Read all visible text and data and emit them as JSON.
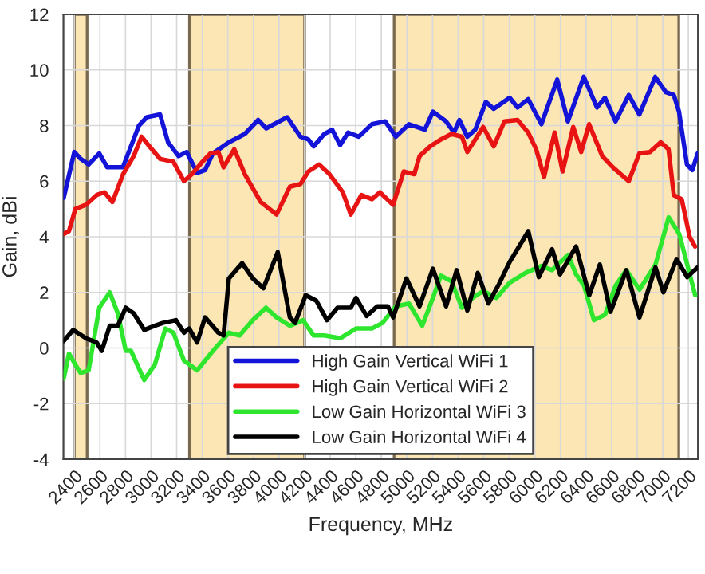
{
  "chart_data": {
    "type": "line",
    "xlabel": "Frequency, MHz",
    "ylabel": "Gain, dBi",
    "xlim": [
      2315,
      7275
    ],
    "ylim": [
      -4,
      12
    ],
    "xticks": [
      2400,
      2600,
      2800,
      3000,
      3200,
      3400,
      3600,
      3800,
      4000,
      4200,
      4400,
      4600,
      4800,
      5000,
      5200,
      5400,
      5600,
      5800,
      6000,
      6200,
      6400,
      6600,
      6800,
      7000,
      7200
    ],
    "yticks": [
      -4,
      -2,
      0,
      2,
      4,
      6,
      8,
      10,
      12
    ],
    "grid": true,
    "legend": "bottom",
    "bands": [
      {
        "axis": "x",
        "from": 2400,
        "to": 2500,
        "color": "#fce6b4"
      },
      {
        "axis": "x",
        "from": 3300,
        "to": 4200,
        "color": "#fce6b4"
      },
      {
        "axis": "x",
        "from": 4900,
        "to": 7125,
        "color": "#fce6b4"
      }
    ],
    "series": [
      {
        "name": "High Gain Vertical WiFi 1",
        "color": "#1414d8",
        "x": [
          2317,
          2400,
          2450,
          2512,
          2595,
          2657,
          2780,
          2905,
          2967,
          3070,
          3133,
          3215,
          3278,
          3360,
          3422,
          3484,
          3608,
          3733,
          3837,
          3900,
          4064,
          4168,
          4230,
          4271,
          4354,
          4416,
          4478,
          4540,
          4623,
          4727,
          4830,
          4913,
          5016,
          5140,
          5203,
          5306,
          5368,
          5410,
          5472,
          5534,
          5617,
          5679,
          5803,
          5865,
          5948,
          6051,
          6175,
          6258,
          6382,
          6486,
          6548,
          6631,
          6734,
          6817,
          6941,
          7024,
          7086,
          7127,
          7189,
          7231,
          7273
        ],
        "values": [
          5.4,
          7.05,
          6.8,
          6.6,
          7.0,
          6.5,
          6.5,
          8.0,
          8.3,
          8.4,
          7.4,
          6.9,
          7.05,
          6.3,
          6.4,
          7.0,
          7.4,
          7.7,
          8.2,
          7.9,
          8.3,
          7.6,
          7.5,
          7.25,
          7.7,
          7.85,
          7.3,
          7.75,
          7.6,
          8.05,
          8.15,
          7.6,
          8.05,
          7.85,
          8.5,
          8.15,
          7.75,
          8.2,
          7.6,
          7.85,
          8.85,
          8.6,
          9.0,
          8.65,
          8.95,
          8.05,
          9.65,
          8.15,
          9.75,
          8.65,
          9.0,
          8.15,
          9.1,
          8.4,
          9.75,
          9.2,
          9.1,
          8.5,
          6.6,
          6.4,
          7.0
        ]
      },
      {
        "name": "High Gain Vertical WiFi 2",
        "color": "#e81414",
        "x": [
          2317,
          2358,
          2408,
          2491,
          2574,
          2636,
          2698,
          2781,
          2864,
          2926,
          2988,
          3071,
          3174,
          3257,
          3319,
          3402,
          3464,
          3526,
          3567,
          3650,
          3733,
          3857,
          3981,
          4085,
          4168,
          4230,
          4313,
          4395,
          4499,
          4561,
          4644,
          4727,
          4789,
          4892,
          4975,
          5058,
          5099,
          5182,
          5265,
          5348,
          5430,
          5472,
          5534,
          5596,
          5679,
          5762,
          5865,
          5948,
          6010,
          6072,
          6155,
          6217,
          6300,
          6362,
          6424,
          6527,
          6610,
          6734,
          6817,
          6900,
          6983,
          7045,
          7086,
          7148,
          7210,
          7252
        ],
        "values": [
          4.1,
          4.2,
          5.0,
          5.15,
          5.5,
          5.6,
          5.25,
          6.25,
          6.9,
          7.6,
          7.25,
          6.8,
          6.7,
          6.0,
          6.25,
          6.7,
          7.0,
          7.05,
          6.5,
          7.15,
          6.25,
          5.25,
          4.8,
          5.8,
          5.9,
          6.35,
          6.6,
          6.25,
          5.6,
          4.8,
          5.5,
          5.35,
          5.6,
          5.15,
          6.35,
          6.25,
          6.9,
          7.25,
          7.5,
          7.7,
          7.6,
          7.05,
          7.5,
          7.95,
          7.25,
          8.15,
          8.2,
          7.75,
          7.15,
          6.15,
          7.75,
          6.35,
          7.95,
          7.05,
          8.05,
          6.9,
          6.5,
          6.0,
          7.0,
          7.05,
          7.4,
          7.15,
          5.5,
          5.35,
          4.0,
          3.65
        ]
      },
      {
        "name": "Low Gain Horizontal WiFi 3",
        "color": "#2ee62e",
        "x": [
          2317,
          2358,
          2408,
          2450,
          2512,
          2595,
          2677,
          2740,
          2802,
          2843,
          2946,
          3029,
          3112,
          3174,
          3257,
          3360,
          3484,
          3608,
          3691,
          3795,
          3898,
          3981,
          4085,
          4188,
          4271,
          4354,
          4478,
          4602,
          4726,
          4809,
          4913,
          5016,
          5120,
          5203,
          5265,
          5348,
          5430,
          5513,
          5596,
          5700,
          5803,
          5927,
          6051,
          6135,
          6259,
          6322,
          6384,
          6462,
          6549,
          6632,
          6715,
          6818,
          6943,
          7046,
          7129,
          7211,
          7253
        ],
        "values": [
          -1.1,
          -0.2,
          -0.6,
          -0.9,
          -0.8,
          1.45,
          2.0,
          1.25,
          -0.1,
          -0.1,
          -1.15,
          -0.6,
          0.7,
          0.55,
          -0.45,
          -0.8,
          -0.1,
          0.55,
          0.45,
          1.0,
          1.45,
          1.1,
          0.8,
          1.0,
          0.45,
          0.45,
          0.35,
          0.7,
          0.7,
          0.9,
          1.5,
          1.6,
          0.8,
          1.8,
          2.6,
          2.4,
          1.45,
          1.8,
          2.05,
          1.8,
          2.35,
          2.7,
          2.95,
          2.8,
          3.35,
          2.65,
          2.25,
          1.0,
          1.2,
          2.25,
          2.8,
          2.1,
          3.0,
          4.7,
          4.1,
          2.65,
          1.9
        ]
      },
      {
        "name": "Low Gain Horizontal WiFi 4",
        "color": "#000000",
        "x": [
          2317,
          2391,
          2491,
          2574,
          2615,
          2677,
          2740,
          2802,
          2864,
          2946,
          3029,
          3091,
          3195,
          3257,
          3298,
          3360,
          3422,
          3526,
          3567,
          3608,
          3712,
          3795,
          3878,
          3990,
          4085,
          4126,
          4209,
          4292,
          4375,
          4457,
          4561,
          4602,
          4685,
          4768,
          4851,
          4892,
          4996,
          5099,
          5203,
          5306,
          5389,
          5472,
          5554,
          5637,
          5720,
          5804,
          5949,
          6031,
          6135,
          6197,
          6322,
          6425,
          6508,
          6591,
          6715,
          6818,
          6943,
          7005,
          7108,
          7191,
          7273
        ],
        "values": [
          0.25,
          0.65,
          0.35,
          0.2,
          -0.1,
          0.8,
          0.8,
          1.45,
          1.25,
          0.65,
          0.8,
          0.9,
          1.0,
          0.55,
          0.7,
          0.2,
          1.1,
          0.55,
          0.45,
          2.5,
          3.05,
          2.5,
          2.15,
          3.45,
          1.1,
          0.9,
          1.9,
          1.7,
          1.0,
          1.45,
          1.45,
          1.8,
          1.15,
          1.5,
          1.5,
          1.1,
          2.5,
          1.5,
          2.85,
          1.5,
          2.8,
          1.35,
          2.7,
          1.6,
          2.3,
          3.1,
          4.2,
          2.55,
          3.55,
          2.65,
          3.65,
          1.9,
          3.0,
          1.3,
          2.8,
          1.1,
          2.9,
          2.0,
          3.2,
          2.55,
          2.9
        ]
      }
    ]
  }
}
